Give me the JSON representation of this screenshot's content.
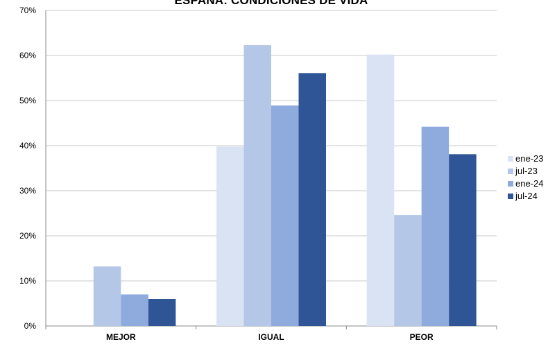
{
  "chart_data": {
    "type": "bar",
    "title": "ESPAÑA: CONDICIONES DE VIDA",
    "categories": [
      "MEJOR",
      "IGUAL",
      "PEOR"
    ],
    "series": [
      {
        "name": "ene-23",
        "color": "#dae3f3",
        "values": [
          0,
          39.8,
          60.2
        ]
      },
      {
        "name": "jul-23",
        "color": "#b4c7e7",
        "values": [
          13.2,
          62.3,
          24.6
        ]
      },
      {
        "name": "ene-24",
        "color": "#8faadc",
        "values": [
          7.0,
          48.9,
          44.2
        ]
      },
      {
        "name": "jul-24",
        "color": "#2f5597",
        "values": [
          6.0,
          56.1,
          38.1
        ]
      }
    ],
    "ylim": [
      0,
      70
    ],
    "yticks": [
      0,
      10,
      20,
      30,
      40,
      50,
      60,
      70
    ],
    "ytick_labels": [
      "0%",
      "10%",
      "20%",
      "30%",
      "40%",
      "50%",
      "60%",
      "70%"
    ],
    "grid": true,
    "legend_position": "right"
  }
}
